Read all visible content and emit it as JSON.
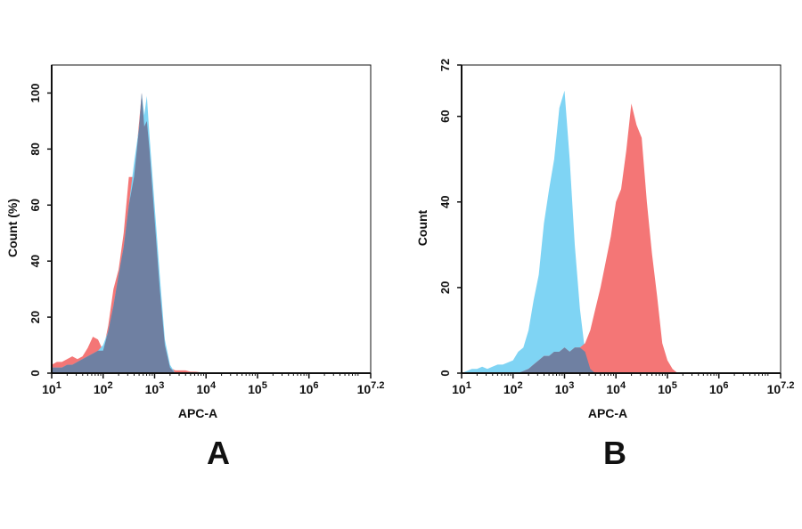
{
  "colors": {
    "red": "#f47676",
    "blue": "#7fd4f4",
    "overlap": "#6f80a2",
    "axis": "#111111"
  },
  "chart_data": [
    {
      "type": "area",
      "panel_label": "A",
      "xlabel": "APC-A",
      "ylabel": "Count (%)",
      "x_scale": "log10",
      "xlim_log10": [
        1,
        7.2
      ],
      "xtick_labels": [
        {
          "base": "10",
          "exp": "1",
          "log10": 1
        },
        {
          "base": "10",
          "exp": "2",
          "log10": 2
        },
        {
          "base": "10",
          "exp": "3",
          "log10": 3
        },
        {
          "base": "10",
          "exp": "4",
          "log10": 4
        },
        {
          "base": "10",
          "exp": "5",
          "log10": 5
        },
        {
          "base": "10",
          "exp": "6",
          "log10": 6
        },
        {
          "base": "10",
          "exp": "7.2",
          "log10": 7.2
        }
      ],
      "ylim": [
        0,
        110
      ],
      "yticks": [
        "0",
        "20",
        "40",
        "60",
        "80",
        "100"
      ],
      "x_log10": [
        1.0,
        1.1,
        1.2,
        1.3,
        1.4,
        1.5,
        1.6,
        1.7,
        1.8,
        1.9,
        2.0,
        2.1,
        2.2,
        2.3,
        2.4,
        2.5,
        2.6,
        2.7,
        2.75,
        2.8,
        2.85,
        2.9,
        3.0,
        3.1,
        3.2,
        3.3,
        3.4,
        3.5,
        3.6,
        3.7,
        3.8,
        3.9,
        4.0,
        4.2,
        4.4,
        4.6,
        4.8,
        5.0
      ],
      "series": [
        {
          "color": "red",
          "values": [
            3,
            4,
            4,
            5,
            6,
            5,
            6,
            9,
            13,
            12,
            8,
            17,
            30,
            37,
            50,
            70,
            70,
            90,
            100,
            88,
            90,
            80,
            55,
            30,
            10,
            2,
            1,
            1,
            1,
            0.5,
            0.5,
            0.3,
            0.3,
            0.3,
            0.3,
            0.3,
            0.2,
            0
          ]
        },
        {
          "color": "blue",
          "values": [
            2,
            2,
            2,
            3,
            3,
            4,
            5,
            6,
            7,
            8,
            10,
            15,
            24,
            35,
            45,
            60,
            75,
            88,
            100,
            92,
            99,
            85,
            60,
            35,
            12,
            3,
            0,
            0,
            0,
            0,
            0,
            0,
            0,
            0,
            0,
            0,
            0,
            0
          ]
        }
      ]
    },
    {
      "type": "area",
      "panel_label": "B",
      "xlabel": "APC-A",
      "ylabel": "Count",
      "x_scale": "log10",
      "xlim_log10": [
        1,
        7.2
      ],
      "xtick_labels": [
        {
          "base": "10",
          "exp": "1",
          "log10": 1
        },
        {
          "base": "10",
          "exp": "2",
          "log10": 2
        },
        {
          "base": "10",
          "exp": "3",
          "log10": 3
        },
        {
          "base": "10",
          "exp": "4",
          "log10": 4
        },
        {
          "base": "10",
          "exp": "5",
          "log10": 5
        },
        {
          "base": "10",
          "exp": "6",
          "log10": 6
        },
        {
          "base": "10",
          "exp": "7.2",
          "log10": 7.2
        }
      ],
      "ylim": [
        0,
        72
      ],
      "yticks": [
        "0",
        "20",
        "40",
        "60",
        "72"
      ],
      "x_log10": [
        1.0,
        1.1,
        1.2,
        1.3,
        1.4,
        1.5,
        1.6,
        1.7,
        1.8,
        1.9,
        2.0,
        2.1,
        2.2,
        2.3,
        2.4,
        2.5,
        2.6,
        2.7,
        2.8,
        2.9,
        3.0,
        3.1,
        3.2,
        3.3,
        3.4,
        3.5,
        3.6,
        3.7,
        3.8,
        3.9,
        4.0,
        4.1,
        4.2,
        4.3,
        4.4,
        4.5,
        4.6,
        4.7,
        4.8,
        4.9,
        5.0,
        5.1,
        5.2,
        5.3
      ],
      "series": [
        {
          "color": "blue",
          "values": [
            0,
            0.5,
            1,
            1,
            1.5,
            1,
            1.5,
            2,
            2,
            2.5,
            3,
            5,
            6,
            10,
            17,
            23,
            35,
            43,
            50,
            62,
            66,
            50,
            30,
            15,
            5,
            1,
            0,
            0,
            0,
            0,
            0,
            0,
            0,
            0,
            0,
            0,
            0,
            0,
            0,
            0,
            0,
            0,
            0,
            0
          ]
        },
        {
          "color": "red",
          "values": [
            0,
            0,
            0,
            0,
            0,
            0,
            0,
            0,
            0,
            0,
            0,
            0,
            0.5,
            1,
            2,
            3,
            4,
            4,
            5,
            5,
            6,
            5,
            6,
            6,
            7,
            10,
            15,
            20,
            26,
            32,
            40,
            43,
            52,
            63,
            58,
            55,
            40,
            28,
            18,
            7,
            3,
            1,
            0,
            0
          ]
        }
      ]
    }
  ]
}
